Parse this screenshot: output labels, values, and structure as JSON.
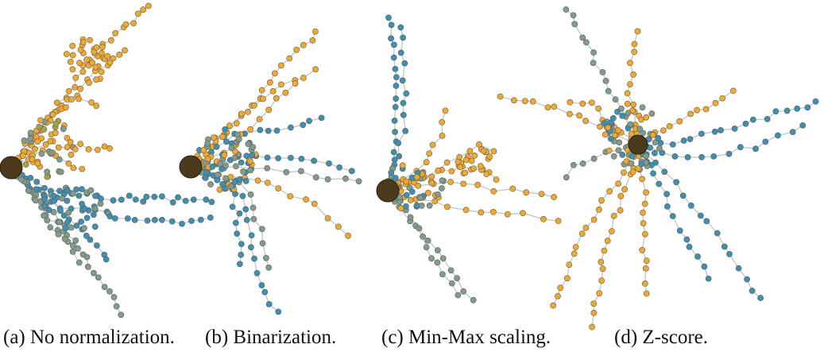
{
  "figure": {
    "panels": [
      {
        "id": "a",
        "caption": "(a) No normalization."
      },
      {
        "id": "b",
        "caption": "(b) Binarization."
      },
      {
        "id": "c",
        "caption": "(c) Min-Max scaling."
      },
      {
        "id": "d",
        "caption": "(d) Z-score."
      }
    ],
    "colors": {
      "orange": "#f0a830",
      "blue": "#3d8fb5",
      "gray_green": "#7f9c8e",
      "olive": "#a5a24c",
      "root": "#4b3a1c",
      "node_stroke": "#5f5f4f",
      "edge": "#c4c4c4"
    }
  }
}
